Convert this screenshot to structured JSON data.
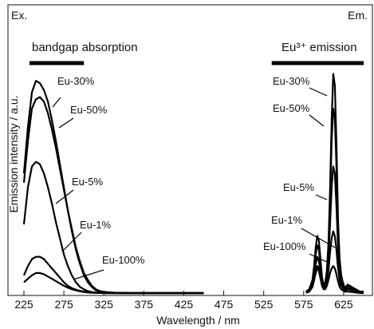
{
  "chart_data": {
    "type": "line",
    "xlabel": "Wavelength / nm",
    "ylabel": "Emission intensity / a.u.",
    "xlim": [
      225,
      650
    ],
    "ylim": [
      0,
      1.0
    ],
    "xticks": [
      225,
      275,
      325,
      375,
      425,
      475,
      525,
      575,
      625
    ],
    "grid": false,
    "legend": "none",
    "regions": [
      {
        "label": "Ex.",
        "band_label": "bandgap absorption",
        "band_range": [
          232,
          300
        ]
      },
      {
        "label": "Em.",
        "band_label": "Eu³⁺ emission",
        "band_range": [
          535,
          650
        ]
      }
    ],
    "series": [
      {
        "name": "Eu-30%",
        "excitation": {
          "x": [
            225,
            230,
            235,
            240,
            245,
            250,
            255,
            260,
            265,
            270,
            275,
            280,
            285,
            290,
            295,
            300,
            305,
            310,
            315,
            320,
            325,
            330,
            340,
            360,
            380,
            400,
            420,
            450
          ],
          "y": [
            0.52,
            0.72,
            0.87,
            0.92,
            0.91,
            0.88,
            0.83,
            0.75,
            0.66,
            0.56,
            0.46,
            0.36,
            0.27,
            0.19,
            0.13,
            0.08,
            0.05,
            0.03,
            0.015,
            0.01,
            0.008,
            0.006,
            0.005,
            0.004,
            0.004,
            0.004,
            0.004,
            0.004
          ]
        },
        "emission": {
          "x": [
            578,
            582,
            586,
            588,
            590,
            592,
            594,
            596,
            598,
            600,
            602,
            604,
            606,
            608,
            610,
            612,
            614,
            616,
            618,
            620,
            622,
            624,
            626,
            628,
            630,
            635,
            640,
            645,
            650
          ],
          "y": [
            0.01,
            0.02,
            0.06,
            0.12,
            0.2,
            0.25,
            0.23,
            0.15,
            0.07,
            0.04,
            0.05,
            0.1,
            0.22,
            0.45,
            0.75,
            0.95,
            0.9,
            0.65,
            0.32,
            0.15,
            0.08,
            0.05,
            0.03,
            0.03,
            0.04,
            0.03,
            0.02,
            0.01,
            0.01
          ]
        }
      },
      {
        "name": "Eu-50%",
        "excitation": {
          "x": [
            225,
            230,
            235,
            240,
            245,
            250,
            255,
            260,
            265,
            270,
            275,
            280,
            285,
            290,
            295,
            300,
            305,
            310,
            315,
            320,
            325,
            330,
            340,
            360,
            380,
            400,
            420,
            450
          ],
          "y": [
            0.48,
            0.66,
            0.8,
            0.84,
            0.85,
            0.83,
            0.78,
            0.71,
            0.63,
            0.54,
            0.45,
            0.36,
            0.28,
            0.2,
            0.14,
            0.09,
            0.06,
            0.035,
            0.02,
            0.012,
            0.009,
            0.007,
            0.005,
            0.004,
            0.004,
            0.004,
            0.004,
            0.004
          ]
        },
        "emission": {
          "x": [
            578,
            582,
            586,
            588,
            590,
            592,
            594,
            596,
            598,
            600,
            602,
            604,
            606,
            608,
            610,
            612,
            614,
            616,
            618,
            620,
            622,
            624,
            626,
            628,
            630,
            635,
            640,
            645,
            650
          ],
          "y": [
            0.01,
            0.02,
            0.05,
            0.1,
            0.17,
            0.21,
            0.19,
            0.12,
            0.06,
            0.035,
            0.045,
            0.09,
            0.19,
            0.4,
            0.66,
            0.8,
            0.76,
            0.55,
            0.28,
            0.13,
            0.07,
            0.045,
            0.03,
            0.025,
            0.035,
            0.025,
            0.02,
            0.01,
            0.01
          ]
        }
      },
      {
        "name": "Eu-5%",
        "excitation": {
          "x": [
            225,
            230,
            235,
            240,
            245,
            250,
            255,
            260,
            265,
            270,
            275,
            280,
            285,
            290,
            295,
            300,
            305,
            310,
            315,
            320,
            325,
            330,
            340,
            360,
            380,
            400,
            420,
            450
          ],
          "y": [
            0.3,
            0.46,
            0.55,
            0.57,
            0.56,
            0.52,
            0.46,
            0.39,
            0.31,
            0.24,
            0.17,
            0.12,
            0.08,
            0.05,
            0.03,
            0.02,
            0.012,
            0.008,
            0.006,
            0.005,
            0.004,
            0.004,
            0.004,
            0.003,
            0.003,
            0.003,
            0.003,
            0.003
          ]
        },
        "emission": {
          "x": [
            578,
            582,
            586,
            588,
            590,
            592,
            594,
            596,
            598,
            600,
            602,
            604,
            606,
            608,
            610,
            612,
            614,
            616,
            618,
            620,
            622,
            624,
            626,
            628,
            630,
            635,
            640,
            645,
            650
          ],
          "y": [
            0.005,
            0.015,
            0.04,
            0.08,
            0.13,
            0.16,
            0.14,
            0.09,
            0.045,
            0.025,
            0.035,
            0.07,
            0.15,
            0.3,
            0.46,
            0.55,
            0.52,
            0.38,
            0.2,
            0.09,
            0.05,
            0.03,
            0.02,
            0.02,
            0.025,
            0.02,
            0.015,
            0.01,
            0.005
          ]
        }
      },
      {
        "name": "Eu-1%",
        "excitation": {
          "x": [
            225,
            230,
            235,
            240,
            245,
            250,
            255,
            260,
            265,
            270,
            275,
            280,
            285,
            290,
            295,
            300,
            305,
            310,
            315,
            320,
            325,
            330,
            340,
            360,
            380,
            400,
            420,
            450
          ],
          "y": [
            0.08,
            0.12,
            0.15,
            0.16,
            0.16,
            0.15,
            0.13,
            0.11,
            0.09,
            0.07,
            0.05,
            0.035,
            0.025,
            0.018,
            0.013,
            0.01,
            0.008,
            0.006,
            0.005,
            0.004,
            0.004,
            0.004,
            0.003,
            0.003,
            0.003,
            0.003,
            0.003,
            0.003
          ]
        },
        "emission": {
          "x": [
            578,
            582,
            586,
            588,
            590,
            592,
            594,
            596,
            598,
            600,
            602,
            604,
            606,
            608,
            610,
            612,
            614,
            616,
            618,
            620,
            622,
            624,
            626,
            628,
            630,
            635,
            640,
            645,
            650
          ],
          "y": [
            0.005,
            0.01,
            0.03,
            0.06,
            0.09,
            0.11,
            0.1,
            0.065,
            0.035,
            0.02,
            0.025,
            0.05,
            0.1,
            0.18,
            0.24,
            0.27,
            0.25,
            0.19,
            0.11,
            0.06,
            0.035,
            0.025,
            0.02,
            0.015,
            0.02,
            0.015,
            0.01,
            0.005,
            0.005
          ]
        }
      },
      {
        "name": "Eu-100%",
        "excitation": {
          "x": [
            225,
            230,
            235,
            240,
            245,
            250,
            255,
            260,
            265,
            270,
            275,
            280,
            285,
            290,
            295,
            300,
            305,
            310,
            315,
            320,
            325,
            330,
            340,
            360,
            380,
            400,
            420,
            450
          ],
          "y": [
            0.05,
            0.065,
            0.08,
            0.09,
            0.09,
            0.085,
            0.075,
            0.065,
            0.055,
            0.045,
            0.035,
            0.027,
            0.02,
            0.015,
            0.011,
            0.008,
            0.006,
            0.005,
            0.004,
            0.004,
            0.003,
            0.003,
            0.003,
            0.003,
            0.003,
            0.003,
            0.003,
            0.003
          ]
        },
        "emission": {
          "x": [
            578,
            582,
            586,
            588,
            590,
            592,
            594,
            596,
            598,
            600,
            602,
            604,
            606,
            608,
            610,
            612,
            614,
            616,
            618,
            620,
            622,
            624,
            626,
            628,
            630,
            635,
            640,
            645,
            650
          ],
          "y": [
            0.005,
            0.01,
            0.03,
            0.06,
            0.1,
            0.12,
            0.11,
            0.07,
            0.035,
            0.02,
            0.02,
            0.035,
            0.06,
            0.09,
            0.11,
            0.12,
            0.11,
            0.085,
            0.055,
            0.03,
            0.02,
            0.015,
            0.01,
            0.01,
            0.01,
            0.008,
            0.006,
            0.004,
            0.003
          ]
        }
      }
    ],
    "annotations": [
      {
        "text": "Eu-30%",
        "series": "Eu-30%",
        "side": "excitation"
      },
      {
        "text": "Eu-50%",
        "series": "Eu-50%",
        "side": "excitation"
      },
      {
        "text": "Eu-5%",
        "series": "Eu-5%",
        "side": "excitation"
      },
      {
        "text": "Eu-1%",
        "series": "Eu-1%",
        "side": "excitation"
      },
      {
        "text": "Eu-100%",
        "series": "Eu-100%",
        "side": "excitation"
      },
      {
        "text": "Eu-30%",
        "series": "Eu-30%",
        "side": "emission"
      },
      {
        "text": "Eu-50%",
        "series": "Eu-50%",
        "side": "emission"
      },
      {
        "text": "Eu-5%",
        "series": "Eu-5%",
        "side": "emission"
      },
      {
        "text": "Eu-1%",
        "series": "Eu-1%",
        "side": "emission"
      },
      {
        "text": "Eu-100%",
        "series": "Eu-100%",
        "side": "emission"
      }
    ]
  }
}
